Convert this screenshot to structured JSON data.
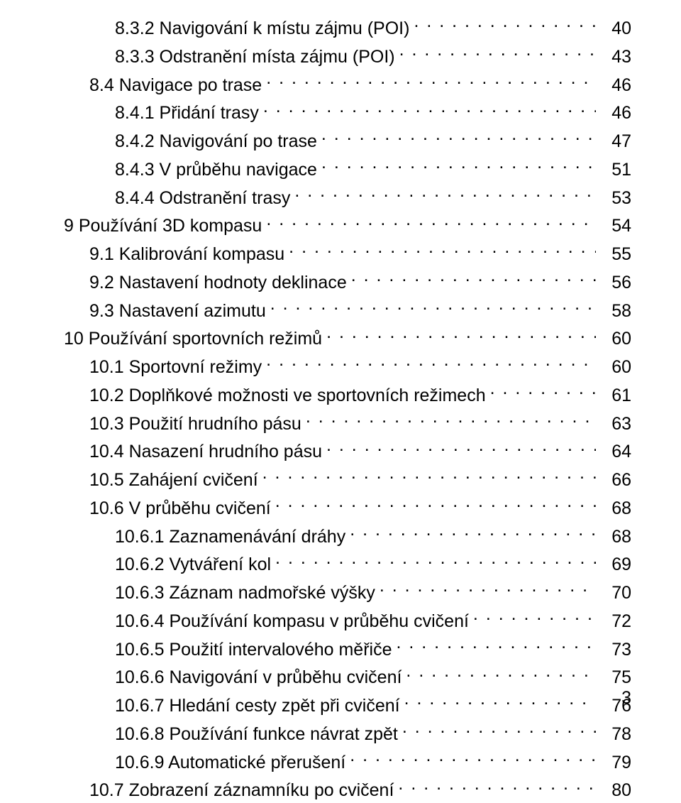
{
  "toc": [
    {
      "indent": 2,
      "title": "8.3.2 Navigování k místu zájmu (POI)",
      "page": "40"
    },
    {
      "indent": 2,
      "title": "8.3.3 Odstranění místa zájmu (POI)",
      "page": "43"
    },
    {
      "indent": 1,
      "title": "8.4 Navigace po trase",
      "page": "46"
    },
    {
      "indent": 2,
      "title": "8.4.1 Přidání trasy",
      "page": "46"
    },
    {
      "indent": 2,
      "title": "8.4.2 Navigování po trase",
      "page": "47"
    },
    {
      "indent": 2,
      "title": "8.4.3 V průběhu navigace",
      "page": "51"
    },
    {
      "indent": 2,
      "title": "8.4.4 Odstranění trasy",
      "page": "53"
    },
    {
      "indent": 0,
      "title": "9 Používání 3D kompasu",
      "page": "54"
    },
    {
      "indent": 1,
      "title": "9.1 Kalibrování kompasu",
      "page": "55"
    },
    {
      "indent": 1,
      "title": "9.2 Nastavení hodnoty deklinace",
      "page": "56"
    },
    {
      "indent": 1,
      "title": "9.3 Nastavení azimutu",
      "page": "58"
    },
    {
      "indent": 0,
      "title": "10 Používání sportovních režimů",
      "page": "60"
    },
    {
      "indent": 1,
      "title": "10.1 Sportovní režimy",
      "page": "60"
    },
    {
      "indent": 1,
      "title": "10.2 Doplňkové možnosti ve sportovních režimech",
      "page": "61"
    },
    {
      "indent": 1,
      "title": "10.3 Použití hrudního pásu",
      "page": "63"
    },
    {
      "indent": 1,
      "title": "10.4 Nasazení hrudního pásu",
      "page": "64"
    },
    {
      "indent": 1,
      "title": "10.5 Zahájení cvičení",
      "page": "66"
    },
    {
      "indent": 1,
      "title": "10.6 V průběhu cvičení",
      "page": "68"
    },
    {
      "indent": 2,
      "title": "10.6.1 Zaznamenávání dráhy",
      "page": "68"
    },
    {
      "indent": 2,
      "title": "10.6.2 Vytváření kol",
      "page": "69"
    },
    {
      "indent": 2,
      "title": "10.6.3 Záznam nadmořské výšky",
      "page": "70"
    },
    {
      "indent": 2,
      "title": "10.6.4 Používání kompasu v průběhu cvičení",
      "page": "72"
    },
    {
      "indent": 2,
      "title": "10.6.5 Použití intervalového měřiče",
      "page": "73"
    },
    {
      "indent": 2,
      "title": "10.6.6 Navigování v průběhu cvičení",
      "page": "75"
    },
    {
      "indent": 2,
      "title": "10.6.7 Hledání cesty zpět při cvičení",
      "page": "76"
    },
    {
      "indent": 2,
      "title": "10.6.8 Používání funkce návrat zpět",
      "page": "78"
    },
    {
      "indent": 2,
      "title": "10.6.9 Automatické přerušení",
      "page": "79"
    },
    {
      "indent": 1,
      "title": "10.7 Zobrazení záznamníku po cvičení",
      "page": "80"
    }
  ],
  "page_number": "3"
}
